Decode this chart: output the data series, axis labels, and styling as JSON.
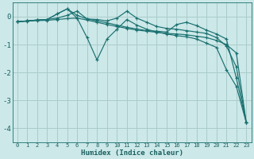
{
  "xlabel": "Humidex (Indice chaleur)",
  "ylabel": "",
  "bg_color": "#cce8e8",
  "grid_color": "#aacccc",
  "line_color": "#1a7070",
  "xlim": [
    -0.5,
    23.5
  ],
  "ylim": [
    -4.5,
    0.5
  ],
  "yticks": [
    0,
    -1,
    -2,
    -3,
    -4
  ],
  "xticks": [
    0,
    1,
    2,
    3,
    4,
    5,
    6,
    7,
    8,
    9,
    10,
    11,
    12,
    13,
    14,
    15,
    16,
    17,
    18,
    19,
    20,
    21,
    22,
    23
  ],
  "series": [
    {
      "x": [
        0,
        1,
        2,
        3,
        4,
        5,
        6,
        7,
        8,
        9,
        10,
        11,
        12,
        13,
        14,
        15,
        16,
        17,
        18,
        19,
        20,
        21,
        22,
        23
      ],
      "y": [
        -0.18,
        -0.15,
        -0.12,
        -0.1,
        0.1,
        0.28,
        0.05,
        -0.08,
        -0.1,
        -0.15,
        -0.05,
        0.2,
        -0.05,
        -0.2,
        -0.35,
        -0.42,
        -0.45,
        -0.5,
        -0.55,
        -0.6,
        -0.75,
        -1.05,
        -1.8,
        -3.8
      ]
    },
    {
      "x": [
        0,
        1,
        2,
        3,
        4,
        5,
        6,
        7,
        8,
        9,
        10,
        11,
        12,
        13,
        14,
        15,
        16,
        17,
        18,
        19,
        20,
        21,
        22,
        23
      ],
      "y": [
        -0.18,
        -0.15,
        -0.12,
        -0.1,
        0.1,
        0.28,
        -0.05,
        -0.75,
        -1.55,
        -0.8,
        -0.45,
        -0.1,
        -0.3,
        -0.45,
        -0.55,
        -0.62,
        -0.68,
        -0.72,
        -0.8,
        -0.95,
        -1.1,
        -1.9,
        -2.5,
        -3.8
      ]
    },
    {
      "x": [
        0,
        1,
        2,
        3,
        4,
        5,
        6,
        7,
        8,
        9,
        10,
        11,
        12,
        13,
        14,
        15,
        16,
        17,
        18,
        19,
        20,
        21,
        22,
        23
      ],
      "y": [
        -0.18,
        -0.16,
        -0.14,
        -0.13,
        -0.1,
        -0.07,
        -0.05,
        -0.12,
        -0.2,
        -0.28,
        -0.35,
        -0.42,
        -0.48,
        -0.52,
        -0.56,
        -0.6,
        -0.62,
        -0.65,
        -0.7,
        -0.75,
        -0.85,
        -1.0,
        -1.3,
        -3.8
      ]
    },
    {
      "x": [
        0,
        1,
        2,
        3,
        4,
        5,
        6,
        7,
        8,
        9,
        10,
        11,
        12,
        13,
        14,
        15,
        16,
        17,
        18,
        19,
        20,
        21,
        22,
        23
      ],
      "y": [
        -0.18,
        -0.15,
        -0.12,
        -0.1,
        -0.05,
        0.05,
        0.2,
        -0.08,
        -0.15,
        -0.22,
        -0.3,
        -0.38,
        -0.44,
        -0.5,
        -0.52,
        -0.55,
        -0.28,
        -0.2,
        -0.32,
        -0.48,
        -0.62,
        -0.8,
        -2.2,
        -3.8
      ]
    }
  ]
}
